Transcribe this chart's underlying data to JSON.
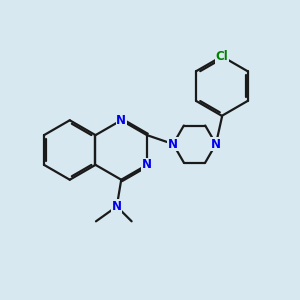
{
  "bg_color": "#d8e8f0",
  "bond_color": "#1a1a1a",
  "N_color": "#0000ee",
  "Cl_color": "#008000",
  "bond_width": 1.6,
  "dbo": 0.055,
  "font_size": 8.5,
  "figsize": [
    3.0,
    3.0
  ],
  "dpi": 100,
  "xlim": [
    0,
    10
  ],
  "ylim": [
    0,
    10
  ]
}
